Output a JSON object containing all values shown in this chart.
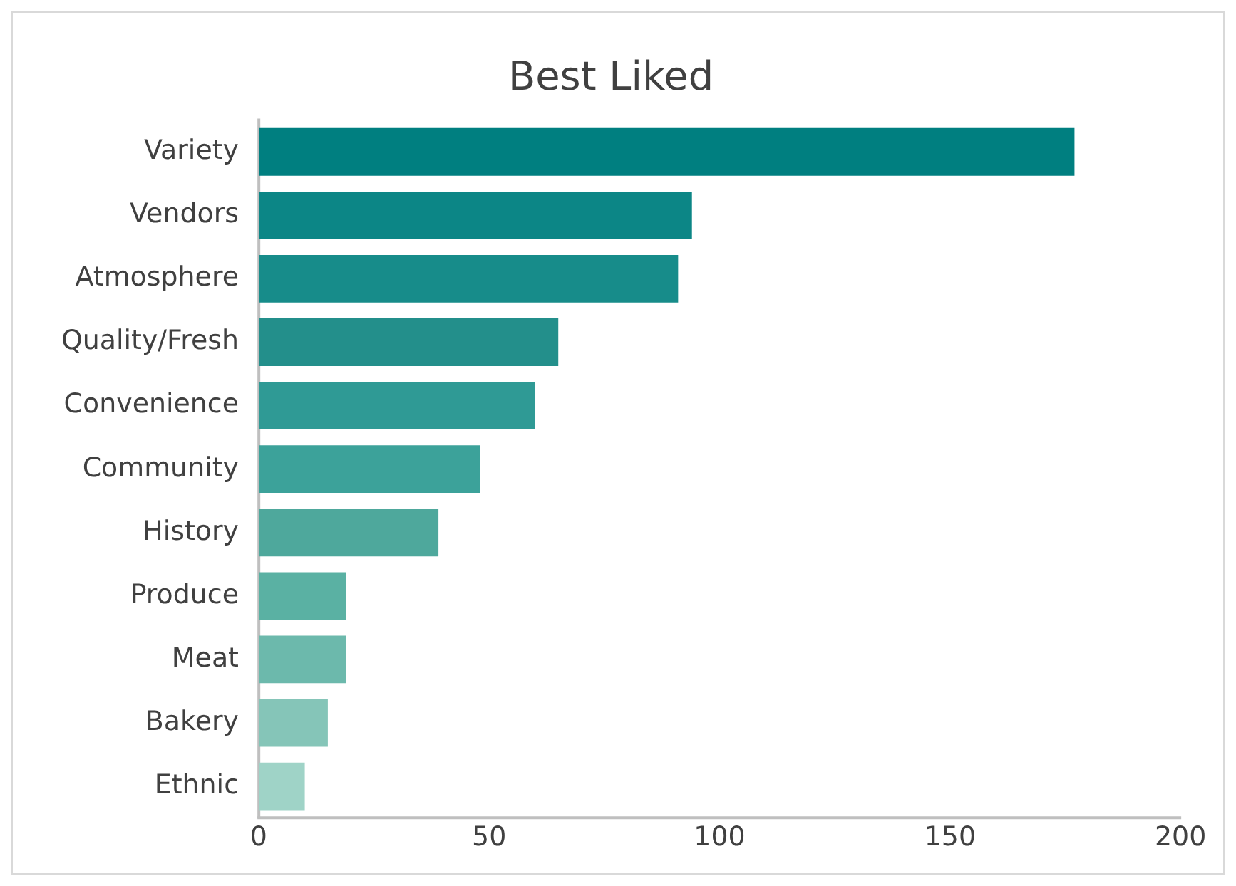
{
  "chart_data": {
    "type": "bar",
    "orientation": "horizontal",
    "title": "Best Liked",
    "categories": [
      "Variety",
      "Vendors",
      "Atmosphere",
      "Quality/Fresh",
      "Convenience",
      "Community",
      "History",
      "Produce",
      "Meat",
      "Bakery",
      "Ethnic"
    ],
    "values": [
      177,
      94,
      91,
      65,
      60,
      48,
      39,
      19,
      19,
      15,
      10
    ],
    "colors": [
      "#007f80",
      "#0c8686",
      "#178c8a",
      "#238f8b",
      "#2f9a95",
      "#3ca29a",
      "#4ea89c",
      "#5ab1a3",
      "#6cb9ac",
      "#85c5b8",
      "#9fd3c7"
    ],
    "xlim": [
      0,
      200
    ],
    "xticks": [
      0,
      50,
      100,
      150,
      200
    ],
    "grid": false,
    "legend": false
  }
}
